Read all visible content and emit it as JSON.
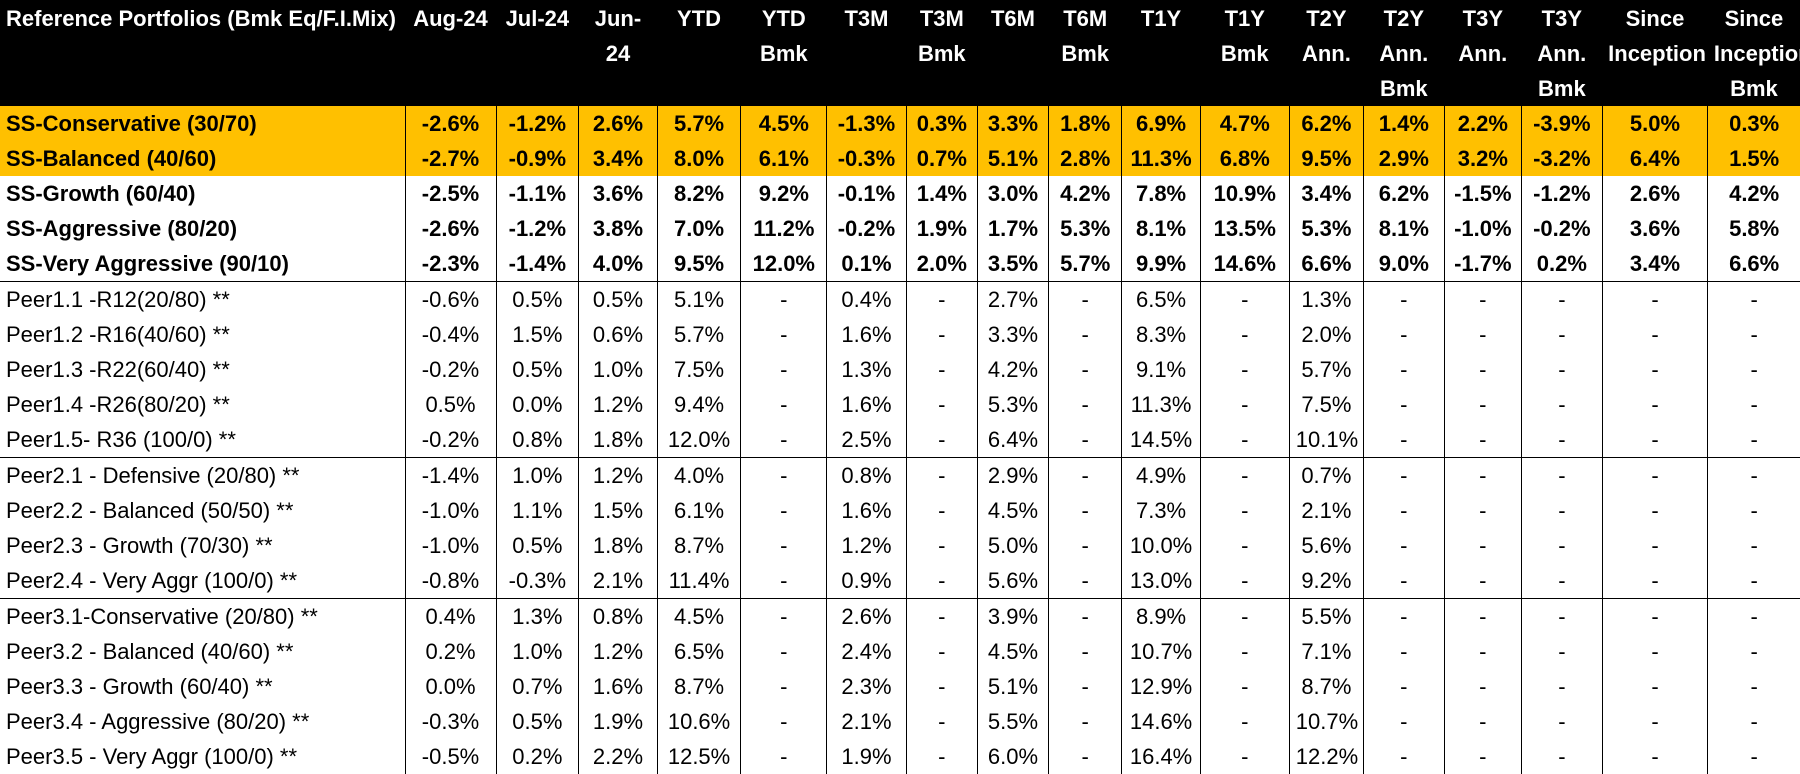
{
  "table": {
    "headers": [
      "Reference Portfolios (Bmk Eq/F.I.Mix)",
      "Aug-24",
      "Jul-24",
      "Jun-24",
      "YTD",
      "YTD Bmk",
      "T3M",
      "T3M Bmk",
      "T6M",
      "T6M Bmk",
      "T1Y",
      "T1Y Bmk",
      "T2Y Ann.",
      "T2Y Ann. Bmk",
      "T3Y Ann.",
      "T3Y Ann. Bmk",
      "Since Inception",
      "Since Inception Bmk"
    ],
    "rows": [
      {
        "style": "hl",
        "cells": [
          "SS-Conservative (30/70)",
          "-2.6%",
          "-1.2%",
          "2.6%",
          "5.7%",
          "4.5%",
          "-1.3%",
          "0.3%",
          "3.3%",
          "1.8%",
          "6.9%",
          "4.7%",
          "6.2%",
          "1.4%",
          "2.2%",
          "-3.9%",
          "5.0%",
          "0.3%"
        ]
      },
      {
        "style": "hl",
        "cells": [
          "SS-Balanced (40/60)",
          "-2.7%",
          "-0.9%",
          "3.4%",
          "8.0%",
          "6.1%",
          "-0.3%",
          "0.7%",
          "5.1%",
          "2.8%",
          "11.3%",
          "6.8%",
          "9.5%",
          "2.9%",
          "3.2%",
          "-3.2%",
          "6.4%",
          "1.5%"
        ]
      },
      {
        "style": "ss",
        "cells": [
          "SS-Growth (60/40)",
          "-2.5%",
          "-1.1%",
          "3.6%",
          "8.2%",
          "9.2%",
          "-0.1%",
          "1.4%",
          "3.0%",
          "4.2%",
          "7.8%",
          "10.9%",
          "3.4%",
          "6.2%",
          "-1.5%",
          "-1.2%",
          "2.6%",
          "4.2%"
        ]
      },
      {
        "style": "ss",
        "cells": [
          "SS-Aggressive (80/20)",
          "-2.6%",
          "-1.2%",
          "3.8%",
          "7.0%",
          "11.2%",
          "-0.2%",
          "1.9%",
          "1.7%",
          "5.3%",
          "8.1%",
          "13.5%",
          "5.3%",
          "8.1%",
          "-1.0%",
          "-0.2%",
          "3.6%",
          "5.8%"
        ]
      },
      {
        "style": "ss",
        "cells": [
          "SS-Very Aggressive (90/10)",
          "-2.3%",
          "-1.4%",
          "4.0%",
          "9.5%",
          "12.0%",
          "0.1%",
          "2.0%",
          "3.5%",
          "5.7%",
          "9.9%",
          "14.6%",
          "6.6%",
          "9.0%",
          "-1.7%",
          "0.2%",
          "3.4%",
          "6.6%"
        ]
      },
      {
        "style": "grp-start",
        "cells": [
          "Peer1.1 -R12(20/80) **",
          "-0.6%",
          "0.5%",
          "0.5%",
          "5.1%",
          "-",
          "0.4%",
          "-",
          "2.7%",
          "-",
          "6.5%",
          "-",
          "1.3%",
          "-",
          "-",
          "-",
          "-",
          "-"
        ]
      },
      {
        "style": "",
        "cells": [
          "Peer1.2 -R16(40/60) **",
          "-0.4%",
          "1.5%",
          "0.6%",
          "5.7%",
          "-",
          "1.6%",
          "-",
          "3.3%",
          "-",
          "8.3%",
          "-",
          "2.0%",
          "-",
          "-",
          "-",
          "-",
          "-"
        ]
      },
      {
        "style": "",
        "cells": [
          "Peer1.3 -R22(60/40) **",
          "-0.2%",
          "0.5%",
          "1.0%",
          "7.5%",
          "-",
          "1.3%",
          "-",
          "4.2%",
          "-",
          "9.1%",
          "-",
          "5.7%",
          "-",
          "-",
          "-",
          "-",
          "-"
        ]
      },
      {
        "style": "",
        "cells": [
          "Peer1.4 -R26(80/20) **",
          "0.5%",
          "0.0%",
          "1.2%",
          "9.4%",
          "-",
          "1.6%",
          "-",
          "5.3%",
          "-",
          "11.3%",
          "-",
          "7.5%",
          "-",
          "-",
          "-",
          "-",
          "-"
        ]
      },
      {
        "style": "",
        "cells": [
          "Peer1.5- R36 (100/0) **",
          "-0.2%",
          "0.8%",
          "1.8%",
          "12.0%",
          "-",
          "2.5%",
          "-",
          "6.4%",
          "-",
          "14.5%",
          "-",
          "10.1%",
          "-",
          "-",
          "-",
          "-",
          "-"
        ]
      },
      {
        "style": "grp-start",
        "cells": [
          "Peer2.1  - Defensive  (20/80) **",
          "-1.4%",
          "1.0%",
          "1.2%",
          "4.0%",
          "-",
          "0.8%",
          "-",
          "2.9%",
          "-",
          "4.9%",
          "-",
          "0.7%",
          "-",
          "-",
          "-",
          "-",
          "-"
        ]
      },
      {
        "style": "",
        "cells": [
          "Peer2.2  - Balanced (50/50) **",
          "-1.0%",
          "1.1%",
          "1.5%",
          "6.1%",
          "-",
          "1.6%",
          "-",
          "4.5%",
          "-",
          "7.3%",
          "-",
          "2.1%",
          "-",
          "-",
          "-",
          "-",
          "-"
        ]
      },
      {
        "style": "",
        "cells": [
          "Peer2.3  - Growth  (70/30) **",
          "-1.0%",
          "0.5%",
          "1.8%",
          "8.7%",
          "-",
          "1.2%",
          "-",
          "5.0%",
          "-",
          "10.0%",
          "-",
          "5.6%",
          "-",
          "-",
          "-",
          "-",
          "-"
        ]
      },
      {
        "style": "",
        "cells": [
          "Peer2.4  - Very Aggr  (100/0) **",
          "-0.8%",
          "-0.3%",
          "2.1%",
          "11.4%",
          "-",
          "0.9%",
          "-",
          "5.6%",
          "-",
          "13.0%",
          "-",
          "9.2%",
          "-",
          "-",
          "-",
          "-",
          "-"
        ]
      },
      {
        "style": "grp-start",
        "cells": [
          "Peer3.1-Conservative (20/80) **",
          "0.4%",
          "1.3%",
          "0.8%",
          "4.5%",
          "-",
          "2.6%",
          "-",
          "3.9%",
          "-",
          "8.9%",
          "-",
          "5.5%",
          "-",
          "-",
          "-",
          "-",
          "-"
        ]
      },
      {
        "style": "",
        "cells": [
          "Peer3.2 - Balanced  (40/60) **",
          "0.2%",
          "1.0%",
          "1.2%",
          "6.5%",
          "-",
          "2.4%",
          "-",
          "4.5%",
          "-",
          "10.7%",
          "-",
          "7.1%",
          "-",
          "-",
          "-",
          "-",
          "-"
        ]
      },
      {
        "style": "",
        "cells": [
          "Peer3.3 - Growth  (60/40) **",
          "0.0%",
          "0.7%",
          "1.6%",
          "8.7%",
          "-",
          "2.3%",
          "-",
          "5.1%",
          "-",
          "12.9%",
          "-",
          "8.7%",
          "-",
          "-",
          "-",
          "-",
          "-"
        ]
      },
      {
        "style": "",
        "cells": [
          "Peer3.4 - Aggressive  (80/20) **",
          "-0.3%",
          "0.5%",
          "1.9%",
          "10.6%",
          "-",
          "2.1%",
          "-",
          "5.5%",
          "-",
          "14.6%",
          "-",
          "10.7%",
          "-",
          "-",
          "-",
          "-",
          "-"
        ]
      },
      {
        "style": "",
        "cells": [
          "Peer3.5  - Very Aggr (100/0) **",
          "-0.5%",
          "0.2%",
          "2.2%",
          "12.5%",
          "-",
          "1.9%",
          "-",
          "6.0%",
          "-",
          "16.4%",
          "-",
          "12.2%",
          "-",
          "-",
          "-",
          "-",
          "-"
        ]
      }
    ]
  },
  "colors": {
    "header_bg": "#000000",
    "header_text": "#ffffff",
    "highlight_bg": "#ffc000",
    "text": "#000000"
  }
}
